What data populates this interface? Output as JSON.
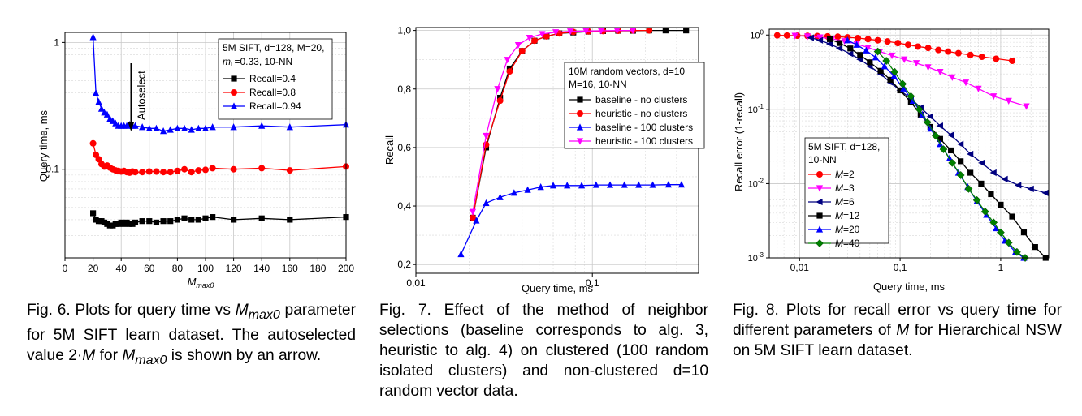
{
  "chart_data": [
    {
      "id": "fig6",
      "type": "line",
      "xlabel": "M",
      "xlabel_sub": "max0",
      "ylabel": "Query time, ms",
      "xlim": [
        0,
        200
      ],
      "ylim": [
        0.02,
        1.2
      ],
      "yscale": "log",
      "grid": true,
      "x_ticks": [
        "0",
        "20",
        "40",
        "60",
        "80",
        "100",
        "120",
        "140",
        "160",
        "180",
        "200"
      ],
      "y_ticks": [
        "0.1",
        "1"
      ],
      "legend": {
        "placement": "top-right",
        "header_line1": "5M SIFT, d=128, M=20,",
        "header_line2": "m",
        "header_line2_sub": "L",
        "header_line2_rest": "=0.33, 10-NN"
      },
      "annotation": "Autoselect",
      "annotation_x": 47,
      "series": [
        {
          "name": "Recall=0.4",
          "color": "#000000",
          "marker": "square",
          "x": [
            20,
            22,
            24,
            26,
            28,
            30,
            32,
            34,
            36,
            38,
            40,
            42,
            44,
            46,
            48,
            50,
            55,
            60,
            65,
            70,
            75,
            80,
            85,
            90,
            95,
            100,
            105,
            120,
            140,
            160,
            200
          ],
          "y": [
            0.045,
            0.04,
            0.039,
            0.039,
            0.038,
            0.037,
            0.036,
            0.036,
            0.037,
            0.037,
            0.038,
            0.037,
            0.038,
            0.037,
            0.037,
            0.038,
            0.039,
            0.039,
            0.038,
            0.039,
            0.039,
            0.04,
            0.041,
            0.04,
            0.04,
            0.041,
            0.042,
            0.04,
            0.041,
            0.04,
            0.042
          ]
        },
        {
          "name": "Recall=0.8",
          "color": "#ff0000",
          "marker": "circle",
          "x": [
            20,
            22,
            24,
            26,
            28,
            30,
            32,
            34,
            36,
            38,
            40,
            42,
            44,
            46,
            48,
            50,
            55,
            60,
            65,
            70,
            75,
            80,
            85,
            90,
            95,
            100,
            105,
            120,
            140,
            160,
            200
          ],
          "y": [
            0.16,
            0.13,
            0.12,
            0.11,
            0.105,
            0.107,
            0.103,
            0.1,
            0.098,
            0.097,
            0.096,
            0.097,
            0.095,
            0.094,
            0.096,
            0.095,
            0.095,
            0.096,
            0.096,
            0.095,
            0.095,
            0.097,
            0.1,
            0.095,
            0.098,
            0.099,
            0.102,
            0.1,
            0.102,
            0.098,
            0.105
          ]
        },
        {
          "name": "Recall=0.94",
          "color": "#0000ff",
          "marker": "triangle",
          "x": [
            20,
            22,
            24,
            26,
            28,
            30,
            32,
            34,
            36,
            38,
            40,
            42,
            44,
            46,
            48,
            50,
            55,
            60,
            65,
            70,
            75,
            80,
            85,
            90,
            95,
            100,
            105,
            120,
            140,
            160,
            200
          ],
          "y": [
            1.1,
            0.4,
            0.34,
            0.3,
            0.28,
            0.27,
            0.25,
            0.24,
            0.23,
            0.22,
            0.22,
            0.22,
            0.22,
            0.225,
            0.22,
            0.22,
            0.215,
            0.21,
            0.21,
            0.2,
            0.205,
            0.21,
            0.21,
            0.205,
            0.21,
            0.21,
            0.215,
            0.215,
            0.22,
            0.215,
            0.225
          ]
        }
      ]
    },
    {
      "id": "fig7",
      "type": "line",
      "xlabel": "Query time, ms",
      "ylabel": "Recall",
      "xlim": [
        0.01,
        0.4
      ],
      "xscale": "log",
      "ylim": [
        0.17,
        1.01
      ],
      "grid": true,
      "x_ticks": [
        "0,01",
        "0,1"
      ],
      "y_ticks": [
        "0,2",
        "0,4",
        "0,6",
        "0,8",
        "1,0"
      ],
      "legend": {
        "placement": "right",
        "header_line1": "10M random vectors, d=10",
        "header_line2": "M=16, 10-NN"
      },
      "series": [
        {
          "name": "baseline - no clusters",
          "color": "#000000",
          "marker": "square",
          "x": [
            0.021,
            0.025,
            0.03,
            0.034,
            0.04,
            0.047,
            0.055,
            0.065,
            0.078,
            0.095,
            0.115,
            0.14,
            0.17,
            0.21,
            0.26,
            0.34
          ],
          "y": [
            0.36,
            0.6,
            0.77,
            0.87,
            0.93,
            0.965,
            0.98,
            0.99,
            0.993,
            0.996,
            0.998,
            0.999,
            0.999,
            1.0,
            1.0,
            1.0
          ]
        },
        {
          "name": "heuristic - no clusters",
          "color": "#ff0000",
          "marker": "circle",
          "x": [
            0.021,
            0.025,
            0.03,
            0.034,
            0.04,
            0.047,
            0.055,
            0.065,
            0.078,
            0.095,
            0.115,
            0.14,
            0.17,
            0.21
          ],
          "y": [
            0.36,
            0.61,
            0.76,
            0.86,
            0.93,
            0.965,
            0.98,
            0.99,
            0.995,
            0.997,
            0.998,
            0.999,
            1.0,
            1.0
          ]
        },
        {
          "name": "baseline - 100 clusters",
          "color": "#0000ff",
          "marker": "triangle",
          "x": [
            0.018,
            0.022,
            0.025,
            0.03,
            0.036,
            0.043,
            0.051,
            0.06,
            0.072,
            0.087,
            0.105,
            0.126,
            0.152,
            0.183,
            0.22,
            0.27,
            0.32
          ],
          "y": [
            0.235,
            0.35,
            0.41,
            0.43,
            0.445,
            0.455,
            0.465,
            0.47,
            0.47,
            0.47,
            0.472,
            0.472,
            0.472,
            0.472,
            0.472,
            0.473,
            0.473
          ]
        },
        {
          "name": "heuristic - 100 clusters",
          "color": "#ff00ff",
          "marker": "triangle-down",
          "x": [
            0.021,
            0.025,
            0.029,
            0.033,
            0.038,
            0.044,
            0.052,
            0.062,
            0.075,
            0.092,
            0.112,
            0.138,
            0.17
          ],
          "y": [
            0.38,
            0.64,
            0.8,
            0.9,
            0.95,
            0.975,
            0.988,
            0.994,
            0.997,
            0.998,
            0.999,
            1.0,
            1.0
          ]
        }
      ]
    },
    {
      "id": "fig8",
      "type": "line",
      "xlabel": "Query time, ms",
      "ylabel": "Recall error (1-recall)",
      "xlim": [
        0.005,
        3
      ],
      "xscale": "log",
      "ylim": [
        0.001,
        1.2
      ],
      "yscale": "log",
      "grid": true,
      "x_ticks": [
        "0,01",
        "0,1",
        "1"
      ],
      "y_ticks": [
        "10^-3",
        "10^-2",
        "10^-1",
        "10^0"
      ],
      "legend": {
        "placement": "bottom-left",
        "header_line1": "5M SIFT, d=128,",
        "header_line2": "10-NN"
      },
      "series": [
        {
          "name": "M=2",
          "color": "#ff0000",
          "marker": "circle",
          "x": [
            0.006,
            0.0075,
            0.0095,
            0.012,
            0.015,
            0.019,
            0.024,
            0.03,
            0.038,
            0.048,
            0.06,
            0.075,
            0.095,
            0.12,
            0.15,
            0.19,
            0.24,
            0.3,
            0.38,
            0.5,
            0.65,
            0.9,
            1.3
          ],
          "y": [
            0.99,
            0.985,
            0.98,
            0.975,
            0.97,
            0.96,
            0.95,
            0.93,
            0.91,
            0.88,
            0.85,
            0.82,
            0.78,
            0.74,
            0.7,
            0.67,
            0.63,
            0.6,
            0.57,
            0.54,
            0.51,
            0.48,
            0.45
          ]
        },
        {
          "name": "M=3",
          "color": "#ff00ff",
          "marker": "triangle-down",
          "x": [
            0.009,
            0.012,
            0.016,
            0.021,
            0.028,
            0.037,
            0.048,
            0.063,
            0.083,
            0.11,
            0.145,
            0.19,
            0.25,
            0.33,
            0.45,
            0.6,
            0.85,
            1.2,
            1.8
          ],
          "y": [
            0.98,
            0.96,
            0.93,
            0.89,
            0.83,
            0.76,
            0.68,
            0.6,
            0.53,
            0.47,
            0.42,
            0.37,
            0.32,
            0.27,
            0.23,
            0.19,
            0.15,
            0.13,
            0.11
          ]
        },
        {
          "name": "M=6",
          "color": "#000080",
          "marker": "triangle-left",
          "x": [
            0.013,
            0.016,
            0.02,
            0.025,
            0.032,
            0.04,
            0.05,
            0.064,
            0.08,
            0.1,
            0.128,
            0.16,
            0.2,
            0.25,
            0.32,
            0.4,
            0.5,
            0.65,
            0.85,
            1.1,
            1.5,
            2.0,
            2.8
          ],
          "y": [
            0.92,
            0.85,
            0.76,
            0.66,
            0.56,
            0.47,
            0.38,
            0.3,
            0.23,
            0.18,
            0.14,
            0.105,
            0.08,
            0.06,
            0.045,
            0.034,
            0.025,
            0.019,
            0.014,
            0.0115,
            0.0095,
            0.0085,
            0.0075
          ]
        },
        {
          "name": "M=12",
          "color": "#000000",
          "marker": "square",
          "x": [
            0.02,
            0.025,
            0.032,
            0.04,
            0.05,
            0.064,
            0.08,
            0.1,
            0.128,
            0.16,
            0.2,
            0.25,
            0.32,
            0.4,
            0.5,
            0.64,
            0.8,
            1.0,
            1.3,
            1.7,
            2.2,
            2.8
          ],
          "y": [
            0.88,
            0.78,
            0.66,
            0.54,
            0.43,
            0.33,
            0.25,
            0.18,
            0.125,
            0.085,
            0.058,
            0.04,
            0.028,
            0.02,
            0.014,
            0.01,
            0.0072,
            0.0052,
            0.0036,
            0.0022,
            0.0014,
            0.001
          ]
        },
        {
          "name": "M=20",
          "color": "#0000ff",
          "marker": "triangle",
          "x": [
            0.03,
            0.037,
            0.046,
            0.057,
            0.07,
            0.087,
            0.108,
            0.134,
            0.166,
            0.2,
            0.25,
            0.31,
            0.38,
            0.47,
            0.58,
            0.72,
            0.9,
            1.1,
            1.4,
            1.7
          ],
          "y": [
            0.85,
            0.74,
            0.62,
            0.5,
            0.38,
            0.28,
            0.19,
            0.13,
            0.085,
            0.055,
            0.034,
            0.022,
            0.014,
            0.009,
            0.0058,
            0.0038,
            0.0025,
            0.0017,
            0.0012,
            0.001
          ]
        },
        {
          "name": "M=40",
          "color": "#008000",
          "marker": "diamond",
          "x": [
            0.06,
            0.073,
            0.088,
            0.106,
            0.128,
            0.155,
            0.187,
            0.226,
            0.27,
            0.33,
            0.4,
            0.48,
            0.58,
            0.7,
            0.85,
            1.0,
            1.2,
            1.45,
            1.75
          ],
          "y": [
            0.6,
            0.45,
            0.32,
            0.22,
            0.15,
            0.1,
            0.067,
            0.044,
            0.029,
            0.019,
            0.013,
            0.0085,
            0.006,
            0.0042,
            0.003,
            0.0022,
            0.0016,
            0.0012,
            0.001
          ]
        }
      ]
    }
  ],
  "captions": {
    "fig6": {
      "part1": "Fig. 6. Plots for query time vs ",
      "m": "M",
      "m_sub": "max0",
      "part2": " parameter for 5M SIFT learn dataset. The autoselected value 2·",
      "m2": "M",
      "part3": " for ",
      "m3": "M",
      "m3_sub": "max0",
      "part4": " is shown by an arrow."
    },
    "fig7": {
      "text": "Fig. 7. Effect of the method of neighbor selections (baseline corresponds to alg. 3, heuristic to alg. 4) on clustered (100 random isolated clusters) and non-clustered d=10 random vector data."
    },
    "fig8": {
      "part1": "Fig. 8. Plots for recall error vs query time for different parameters of ",
      "m": "M",
      "part2": " for Hierarchical NSW on 5M SIFT learn dataset."
    }
  }
}
